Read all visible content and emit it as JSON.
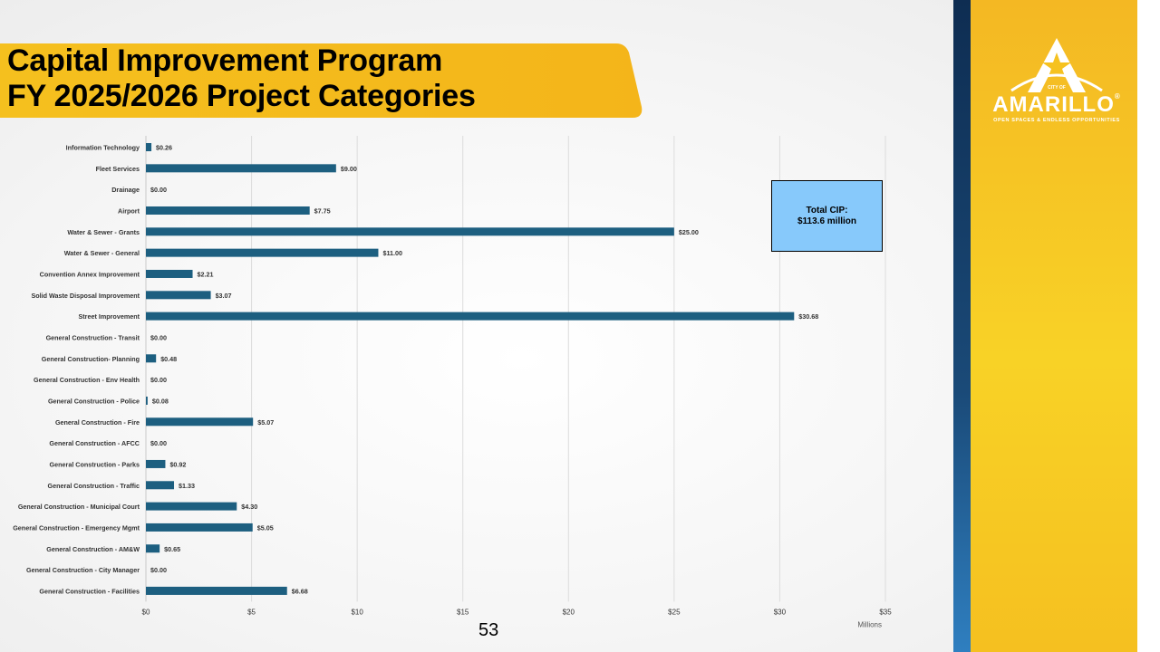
{
  "title": {
    "line1": "Capital Improvement Program",
    "line2": "FY 2025/2026 Project Categories"
  },
  "logo": {
    "name": "AMARILLO",
    "registered": "®",
    "small_text": "CITY OF",
    "tagline": "OPEN SPACES & ENDLESS OPPORTUNITIES"
  },
  "colors": {
    "bar": "#1d5f80",
    "accent_yellow": "#f6c21f",
    "navy": "#0e2d52",
    "callout": "#87c9fb"
  },
  "callout": {
    "line1": "Total CIP:",
    "line2": "$113.6 million"
  },
  "page_number": "53",
  "chart_data": {
    "type": "bar",
    "orientation": "horizontal",
    "categories": [
      "Information Technology",
      "Fleet Services",
      "Drainage",
      "Airport",
      "Water & Sewer - Grants",
      "Water & Sewer - General",
      "Convention Annex Improvement",
      "Solid Waste Disposal Improvement",
      "Street Improvement",
      "General Construction - Transit",
      "General Construction- Planning",
      "General Construction - Env Health",
      "General Construction - Police",
      "General Construction - Fire",
      "General Construction - AFCC",
      "General Construction - Parks",
      "General Construction - Traffic",
      "General Construction - Municipal Court",
      "General Construction - Emergency Mgmt",
      "General Construction - AM&W",
      "General Construction - City Manager",
      "General Construction - Facilities"
    ],
    "values": [
      0.26,
      9.0,
      0.0,
      7.75,
      25.0,
      11.0,
      2.21,
      3.07,
      30.68,
      0.0,
      0.48,
      0.0,
      0.08,
      5.07,
      0.0,
      0.92,
      1.33,
      4.3,
      5.05,
      0.65,
      0.0,
      6.68
    ],
    "value_labels": [
      "$0.26",
      "$9.00",
      "$0.00",
      "$7.75",
      "$25.00",
      "$11.00",
      "$2.21",
      "$3.07",
      "$30.68",
      "$0.00",
      "$0.48",
      "$0.00",
      "$0.08",
      "$5.07",
      "$0.00",
      "$0.92",
      "$1.33",
      "$4.30",
      "$5.05",
      "$0.65",
      "$0.00",
      "$6.68"
    ],
    "x_ticks": [
      0,
      5,
      10,
      15,
      20,
      25,
      30,
      35
    ],
    "x_tick_labels": [
      "$0",
      "$5",
      "$10",
      "$15",
      "$20",
      "$25",
      "$30",
      "$35"
    ],
    "xlim": [
      0,
      35
    ],
    "xlabel": "Millions",
    "grid": true
  }
}
